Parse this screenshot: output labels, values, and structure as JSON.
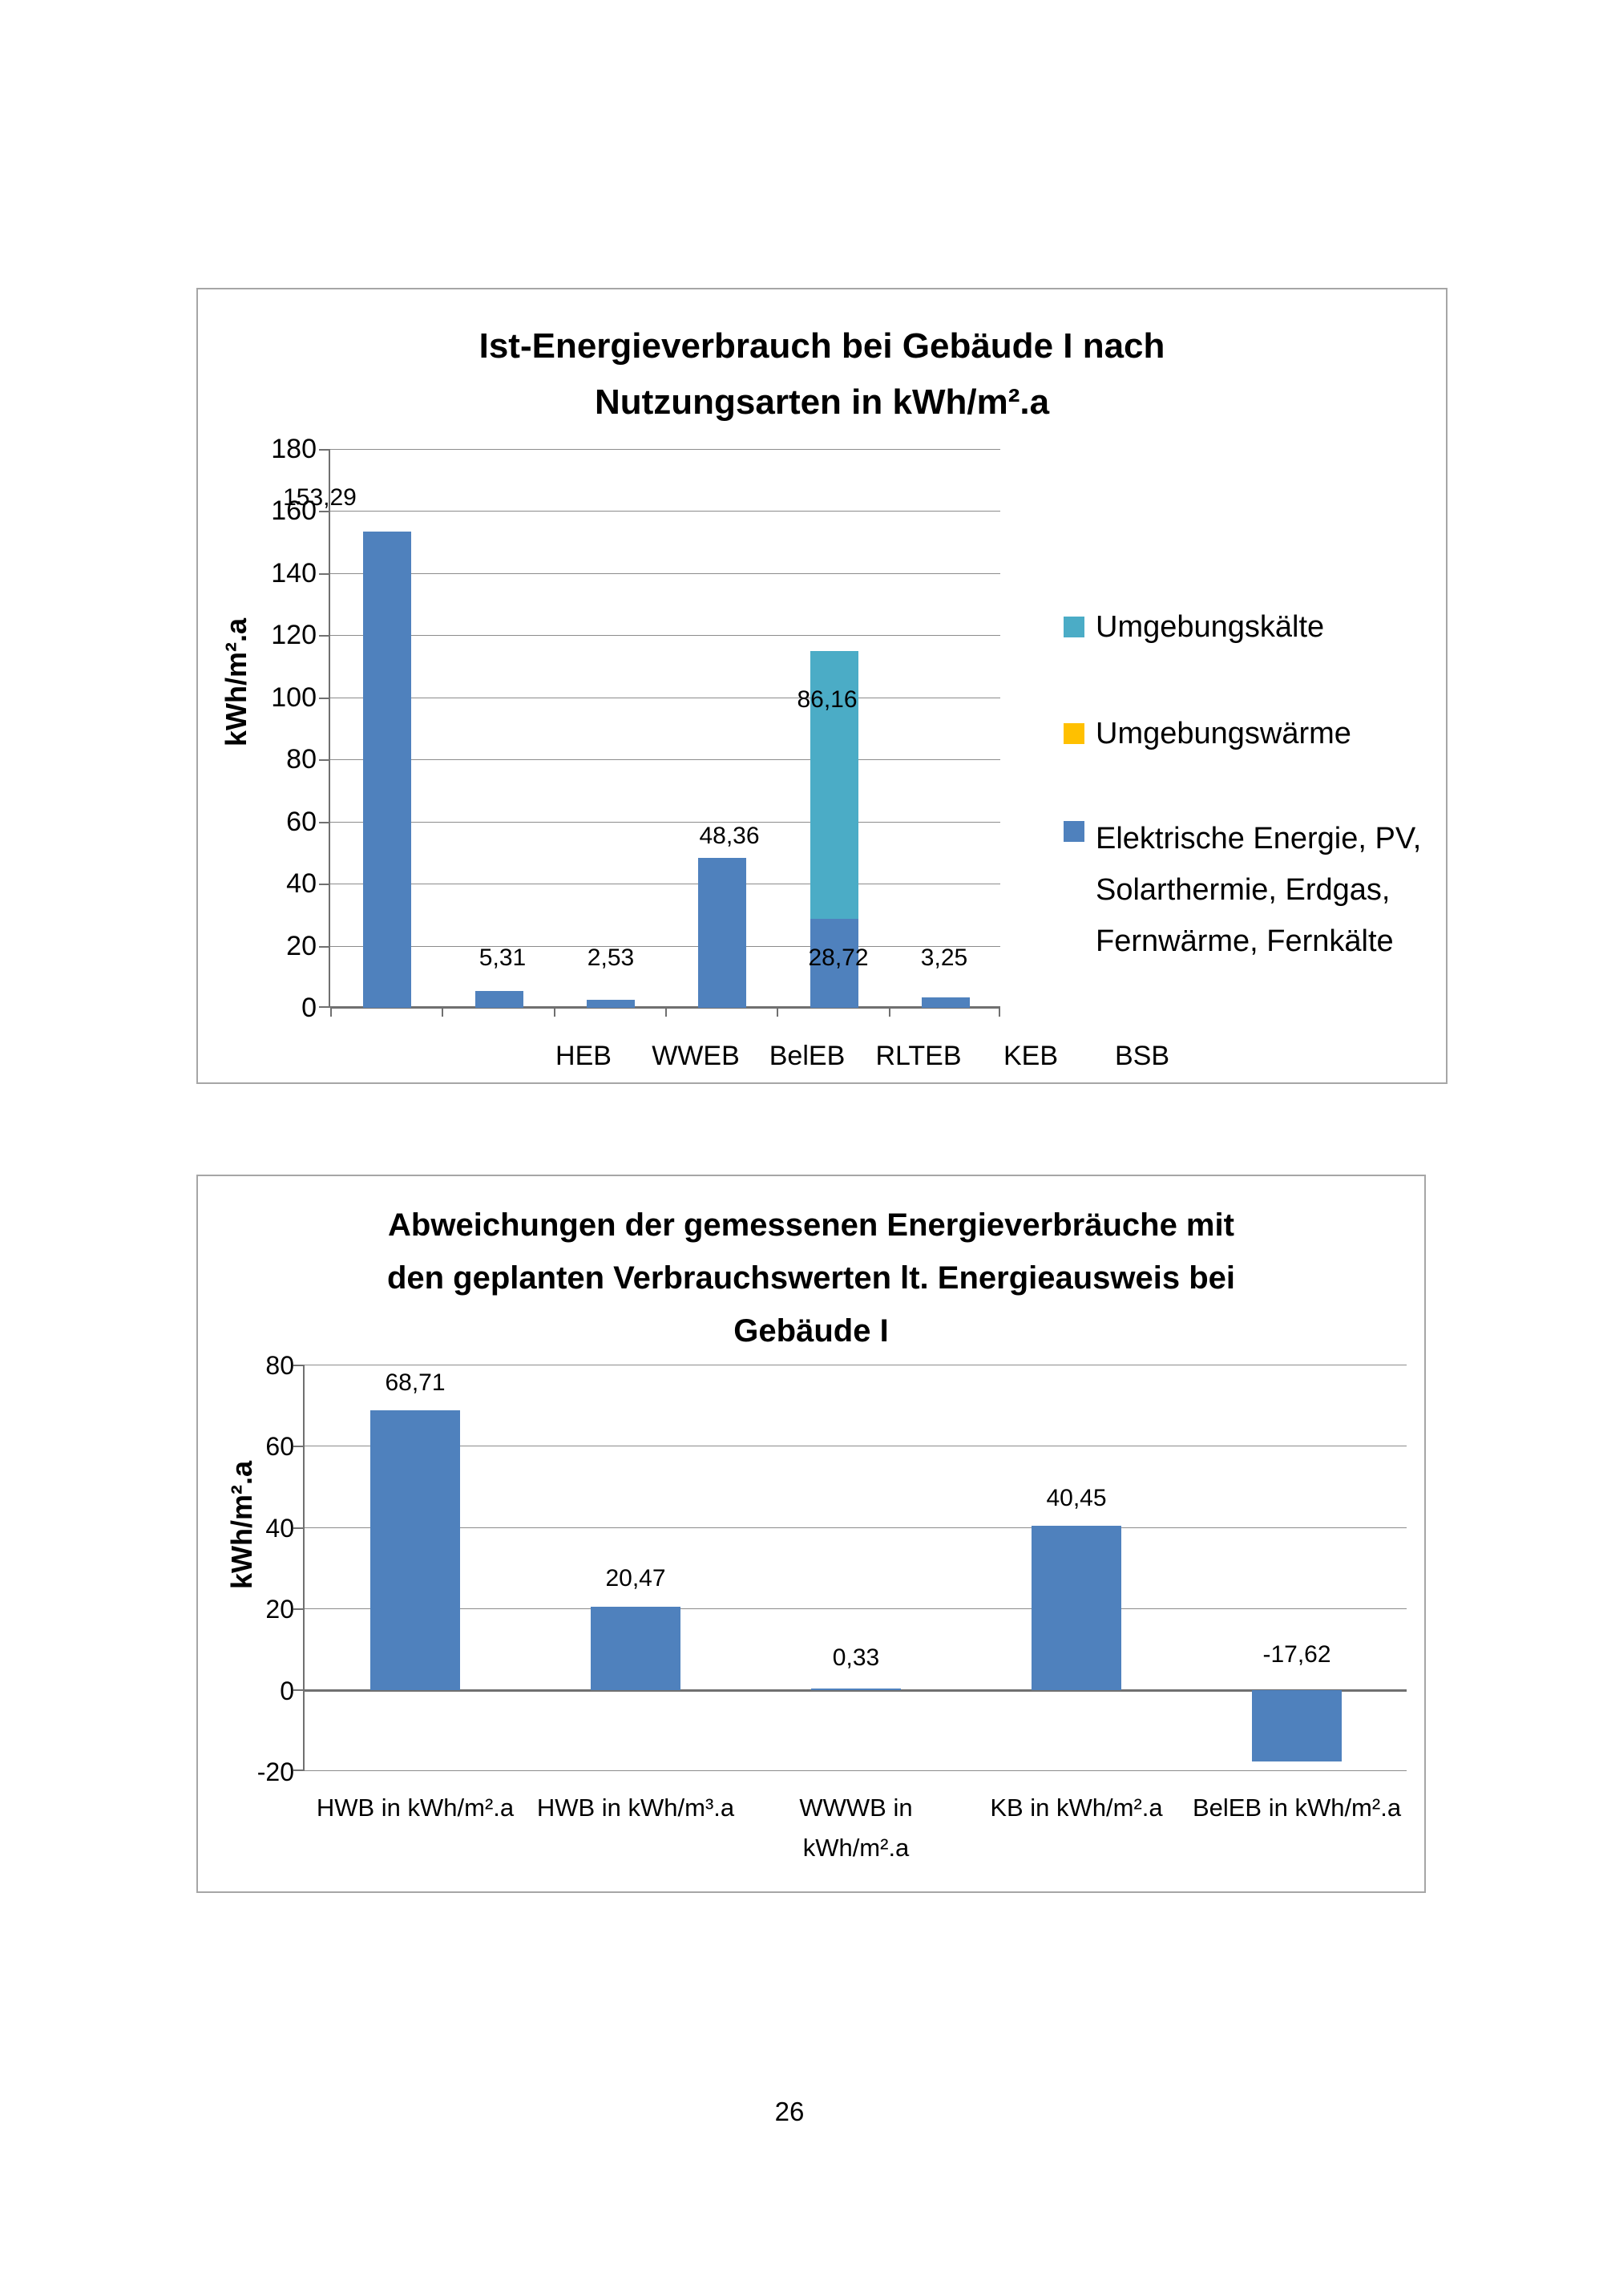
{
  "page": {
    "number": "26"
  },
  "chart_data": [
    {
      "type": "bar",
      "stacked": true,
      "title": "Ist-Energieverbrauch bei Gebäude I nach Nutzungsarten in kWh/m².a",
      "title_lines": [
        "Ist-Energieverbrauch bei Gebäude I nach",
        "Nutzungsarten in kWh/m².a"
      ],
      "ylabel": "kWh/m².a",
      "ylim": [
        0,
        180
      ],
      "ytick_step": 20,
      "ytick_labels": [
        "180",
        "160",
        "140",
        "120",
        "100",
        "80",
        "60",
        "40",
        "20",
        "0"
      ],
      "grid": true,
      "legend_position": "right",
      "categories": [
        "HEB",
        "WWEB",
        "BelEB",
        "RLTEB",
        "KEB",
        "BSB"
      ],
      "series": [
        {
          "name": "Elektrische Energie, PV, Solarthermie, Erdgas, Fernwärme, Fernkälte",
          "color": "#4F81BD",
          "values": [
            153.29,
            5.31,
            2.53,
            48.36,
            28.72,
            3.25
          ]
        },
        {
          "name": "Umgebungswärme",
          "color": "#FFC000",
          "values": [
            0,
            0,
            0,
            0,
            0,
            0
          ]
        },
        {
          "name": "Umgebungskälte",
          "color": "#4BACC6",
          "values": [
            0,
            0,
            0,
            0,
            86.16,
            0
          ]
        }
      ],
      "data_labels": {
        "series1": [
          "153,29",
          "5,31",
          "2,53",
          "48,36",
          "28,72",
          "3,25"
        ],
        "series3_keb": "86,16"
      },
      "legend": [
        {
          "label": "Umgebungskälte",
          "color": "#4BACC6",
          "label_lines": [
            "Umgebungskälte"
          ]
        },
        {
          "label": "Umgebungswärme",
          "color": "#FFC000",
          "label_lines": [
            "Umgebungswärme"
          ]
        },
        {
          "label": "Elektrische Energie, PV, Solarthermie, Erdgas, Fernwärme, Fernkälte",
          "color": "#4F81BD",
          "label_lines": [
            "Elektrische Energie, PV,",
            "Solarthermie, Erdgas,",
            "Fernwärme, Fernkälte"
          ]
        }
      ]
    },
    {
      "type": "bar",
      "stacked": false,
      "title": "Abweichungen der gemessenen Energieverbräuche mit den geplanten Verbrauchswerten lt. Energieausweis bei Gebäude I",
      "title_lines": [
        "Abweichungen der gemessenen Energieverbräuche mit",
        "den geplanten Verbrauchswerten lt. Energieausweis bei",
        "Gebäude I"
      ],
      "ylabel": "kWh/m².a",
      "ylim": [
        -20,
        80
      ],
      "ytick_step": 20,
      "ytick_labels": [
        "80",
        "60",
        "40",
        "20",
        "0",
        "-20"
      ],
      "grid": true,
      "legend_position": "none",
      "categories": [
        "HWB in kWh/m².a",
        "HWB in kWh/m³.a",
        "WWWB in kWh/m².a",
        "KB in kWh/m².a",
        "BelEB in kWh/m².a"
      ],
      "color": "#4F81BD",
      "values": [
        68.71,
        20.47,
        0.33,
        40.45,
        -17.62
      ],
      "data_labels": [
        "68,71",
        "20,47",
        "0,33",
        "40,45",
        "-17,62"
      ]
    }
  ]
}
